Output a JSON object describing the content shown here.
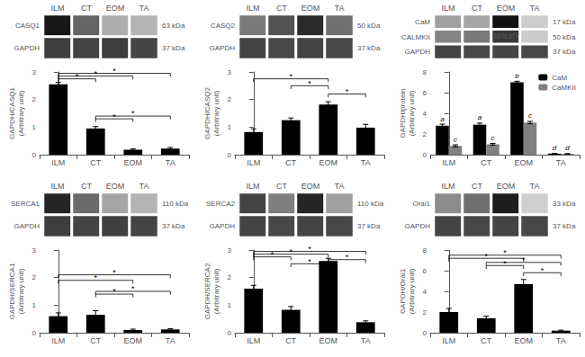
{
  "chart_data": [
    {
      "type": "bar",
      "categories": [
        "ILM",
        "CT",
        "EOM",
        "TA"
      ],
      "ylabel": "GAPDH/CASQ1\n(Arbitrary unit)",
      "ylim": [
        0,
        3
      ],
      "yticks": [
        0,
        1,
        2,
        3
      ],
      "grid": false,
      "color": "#000000",
      "values": [
        2.55,
        0.95,
        0.18,
        0.22
      ],
      "errors": [
        0.07,
        0.07,
        0.03,
        0.04
      ],
      "significance": [
        {
          "from": 0,
          "to": 1,
          "y": 2.75,
          "label": "*"
        },
        {
          "from": 0,
          "to": 2,
          "y": 2.85,
          "label": "*"
        },
        {
          "from": 0,
          "to": 3,
          "y": 2.95,
          "label": "*"
        },
        {
          "from": 1,
          "to": 2,
          "y": 1.3,
          "label": "*"
        },
        {
          "from": 1,
          "to": 3,
          "y": 1.4,
          "label": "*"
        }
      ],
      "blot": {
        "type": "heatmap",
        "intensity_range": [
          0,
          1
        ],
        "rows": [
          {
            "label": "CASQ1",
            "kda": "63 kDa",
            "values": [
              0.95,
              0.55,
              0.18,
              0.15
            ]
          },
          {
            "label": "GAPDH",
            "kda": "37 kDa",
            "values": [
              0.75,
              0.72,
              0.75,
              0.72
            ]
          }
        ]
      }
    },
    {
      "type": "bar",
      "categories": [
        "ILM",
        "CT",
        "EOM",
        "TA"
      ],
      "ylabel": "GAPDH/CASQ2\n(Arbitrary unit)",
      "ylim": [
        0,
        3
      ],
      "yticks": [
        0,
        1,
        2,
        3
      ],
      "grid": false,
      "color": "#000000",
      "values": [
        0.82,
        1.25,
        1.82,
        0.98
      ],
      "errors": [
        0.12,
        0.08,
        0.1,
        0.12
      ],
      "significance": [
        {
          "from": 0,
          "to": 2,
          "y": 2.75,
          "label": "*"
        },
        {
          "from": 1,
          "to": 2,
          "y": 2.5,
          "label": "*"
        },
        {
          "from": 2,
          "to": 3,
          "y": 2.2,
          "label": "*"
        }
      ],
      "blot": {
        "type": "heatmap",
        "intensity_range": [
          0,
          1
        ],
        "rows": [
          {
            "label": "CASQ2",
            "kda": "50 kDa",
            "values": [
              0.45,
              0.65,
              0.85,
              0.5
            ]
          },
          {
            "label": "GAPDH",
            "kda": "37 kDa",
            "values": [
              0.72,
              0.7,
              0.72,
              0.7
            ]
          }
        ]
      }
    },
    {
      "type": "bar",
      "categories": [
        "ILM",
        "CT",
        "EOM",
        "TA"
      ],
      "ylabel": "GAPDH/protein\n(Arbitrary unit)",
      "ylim": [
        0,
        8
      ],
      "yticks": [
        0,
        2,
        4,
        6,
        8
      ],
      "grid": false,
      "legend": "upper right",
      "series": [
        {
          "name": "CaM",
          "color": "#000000",
          "values": [
            2.8,
            2.9,
            7.0,
            0.1
          ],
          "errors": [
            0.15,
            0.15,
            0.1,
            0.02
          ],
          "letters": [
            "a",
            "a",
            "b",
            "d"
          ]
        },
        {
          "name": "CaMKII",
          "color": "#808080",
          "values": [
            0.85,
            1.0,
            3.1,
            0.08
          ],
          "errors": [
            0.1,
            0.08,
            0.12,
            0.02
          ],
          "letters": [
            "c",
            "c",
            "c",
            "d"
          ]
        }
      ],
      "blot": {
        "type": "heatmap",
        "intensity_range": [
          0,
          1
        ],
        "watermark": "© WILEY",
        "rows": [
          {
            "label": "CaM",
            "kda": "17 kDa",
            "values": [
              0.25,
              0.22,
              0.98,
              0.02
            ]
          },
          {
            "label": "CALMKII",
            "kda": "50 kDa",
            "values": [
              0.4,
              0.45,
              0.78,
              0.03
            ]
          },
          {
            "label": "GAPDH",
            "kda": "37 kDa",
            "values": [
              0.72,
              0.7,
              0.72,
              0.7
            ]
          }
        ]
      }
    },
    {
      "type": "bar",
      "categories": [
        "ILM",
        "CT",
        "EOM",
        "TA"
      ],
      "ylabel": "GAPDH/SERCA1\n(Arbitrary unit)",
      "ylim": [
        0,
        3
      ],
      "yticks": [
        0,
        1,
        2,
        3
      ],
      "grid": false,
      "color": "#000000",
      "values": [
        0.6,
        0.65,
        0.1,
        0.12
      ],
      "errors": [
        0.12,
        0.15,
        0.03,
        0.03
      ],
      "significance": [
        {
          "from": 0,
          "to": 2,
          "y": 1.9,
          "label": "*"
        },
        {
          "from": 0,
          "to": 3,
          "y": 2.1,
          "label": "*"
        },
        {
          "from": 1,
          "to": 2,
          "y": 1.4,
          "label": "*"
        },
        {
          "from": 1,
          "to": 3,
          "y": 1.5,
          "label": "*"
        }
      ],
      "blot": {
        "type": "heatmap",
        "intensity_range": [
          0,
          1
        ],
        "rows": [
          {
            "label": "SERCA1",
            "kda": "110 kDa",
            "values": [
              0.88,
              0.52,
              0.22,
              0.15
            ]
          },
          {
            "label": "GAPDH",
            "kda": "37 kDa",
            "values": [
              0.75,
              0.72,
              0.74,
              0.72
            ]
          }
        ]
      }
    },
    {
      "type": "bar",
      "categories": [
        "ILM",
        "CT",
        "EOM",
        "TA"
      ],
      "ylabel": "GAPDH/SERCA2\n(Arbitrary unit)",
      "ylim": [
        0,
        3
      ],
      "yticks": [
        0,
        1,
        2,
        3
      ],
      "grid": false,
      "color": "#000000",
      "values": [
        1.6,
        0.83,
        2.6,
        0.38
      ],
      "errors": [
        0.12,
        0.12,
        0.1,
        0.05
      ],
      "significance": [
        {
          "from": 0,
          "to": 1,
          "y": 2.75,
          "label": "*"
        },
        {
          "from": 0,
          "to": 2,
          "y": 2.85,
          "label": "*"
        },
        {
          "from": 0,
          "to": 3,
          "y": 2.95,
          "label": "*"
        },
        {
          "from": 1,
          "to": 2,
          "y": 2.5,
          "label": "*"
        },
        {
          "from": 2,
          "to": 3,
          "y": 2.65,
          "label": "*"
        }
      ],
      "blot": {
        "type": "heatmap",
        "intensity_range": [
          0,
          1
        ],
        "rows": [
          {
            "label": "SERCA2",
            "kda": "110 kDa",
            "values": [
              0.72,
              0.42,
              0.88,
              0.25
            ]
          },
          {
            "label": "GAPDH",
            "kda": "37 kDa",
            "values": [
              0.72,
              0.7,
              0.72,
              0.7
            ]
          }
        ]
      }
    },
    {
      "type": "bar",
      "categories": [
        "ILM",
        "CT",
        "EOM",
        "TA"
      ],
      "ylabel": "GAPDH/Orai1\n(Arbitrary unit)",
      "ylim": [
        0,
        8
      ],
      "yticks": [
        0,
        2,
        4,
        6,
        8
      ],
      "grid": false,
      "color": "#000000",
      "values": [
        2.0,
        1.4,
        4.7,
        0.2
      ],
      "errors": [
        0.35,
        0.2,
        0.45,
        0.05
      ],
      "significance": [
        {
          "from": 0,
          "to": 2,
          "y": 7.2,
          "label": "*"
        },
        {
          "from": 0,
          "to": 3,
          "y": 7.5,
          "label": "*"
        },
        {
          "from": 1,
          "to": 2,
          "y": 6.5,
          "label": "*"
        },
        {
          "from": 1,
          "to": 3,
          "y": 6.8,
          "label": "*"
        },
        {
          "from": 2,
          "to": 3,
          "y": 5.8,
          "label": "*"
        }
      ],
      "blot": {
        "type": "heatmap",
        "intensity_range": [
          0,
          1
        ],
        "rows": [
          {
            "label": "Orai1",
            "kda": "33 kDa",
            "values": [
              0.35,
              0.5,
              0.92,
              0.01
            ]
          },
          {
            "label": "GAPDH",
            "kda": "37 kDa",
            "values": [
              0.72,
              0.7,
              0.72,
              0.7
            ]
          }
        ]
      }
    }
  ]
}
